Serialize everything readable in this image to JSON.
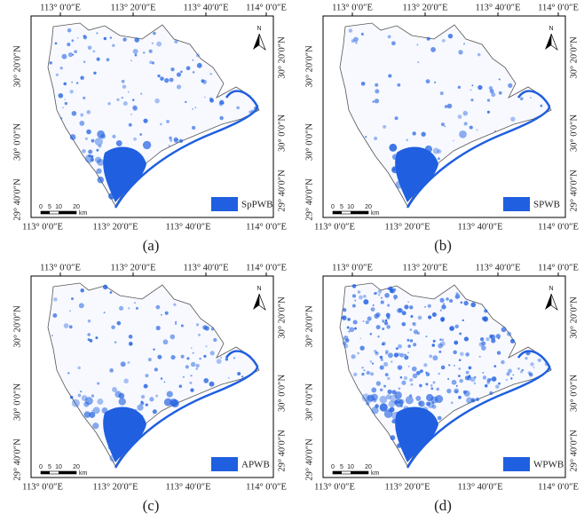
{
  "axes": {
    "top_ticks": [
      "113° 0′0″E",
      "113° 20′0″E",
      "113° 40′0″E",
      "114° 0′0″E"
    ],
    "bottom_ticks": [
      "113° 0′0″E",
      "113° 20′0″E",
      "113° 40′0″E",
      "114° 0′0″E"
    ],
    "left_ticks": [
      "30° 20′0″N",
      "30° 0′0″N",
      "29° 40′0″N"
    ],
    "right_ticks": [
      "30° 20′0″N",
      "30° 0′0″N",
      "29° 40′0″N"
    ]
  },
  "scale_bar": {
    "labels": [
      "0",
      "5",
      "10",
      "20"
    ],
    "unit": "km"
  },
  "north": "N",
  "panels": [
    {
      "caption": "(a)",
      "legend": "SpPWB"
    },
    {
      "caption": "(b)",
      "legend": "SPWB"
    },
    {
      "caption": "(c)",
      "legend": "APWB"
    },
    {
      "caption": "(d)",
      "legend": "WPWB"
    }
  ]
}
